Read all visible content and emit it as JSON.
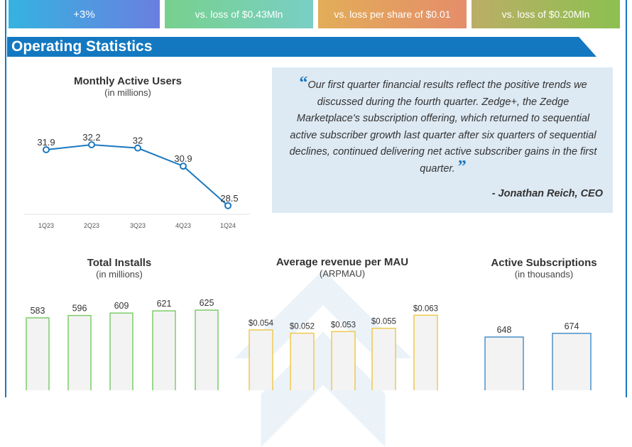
{
  "cards": [
    "+3%",
    "vs. loss of $0.43Mln",
    "vs. loss per share of $0.01",
    "vs. loss of $0.20Mln"
  ],
  "section_title": "Operating Statistics",
  "colors": {
    "accent": "#1378c0",
    "line": "#1b78c0",
    "installs": "#7ccd6a",
    "arpmau": "#efc94c",
    "subs": "#4a90c8",
    "quote_bg": "#dde9f3"
  },
  "quote": {
    "text": "Our first quarter financial results reflect the positive trends we discussed during the fourth quarter. Zedge+, the Zedge Marketplace's subscription offering, which returned to sequential active subscriber growth last quarter after six quarters of sequential declines, continued delivering net active subscriber gains in the first quarter.",
    "author": "- Jonathan Reich, CEO"
  },
  "chart_data": [
    {
      "type": "line",
      "title": "Monthly Active Users",
      "subtitle": "(in millions)",
      "categories": [
        "1Q23",
        "2Q23",
        "3Q23",
        "4Q23",
        "1Q24"
      ],
      "values": [
        31.9,
        32.2,
        32,
        30.9,
        28.5
      ],
      "value_labels": [
        "31.9",
        "32.2",
        "32",
        "30.9",
        "28.5"
      ],
      "grid": false
    },
    {
      "type": "bar",
      "title": "Total Installs",
      "subtitle": "(in millions)",
      "values": [
        583,
        596,
        609,
        621,
        625
      ],
      "value_labels": [
        "583",
        "596",
        "609",
        "621",
        "625"
      ]
    },
    {
      "type": "bar",
      "title": "Average revenue per MAU",
      "subtitle": "(ARPMAU)",
      "values": [
        0.054,
        0.052,
        0.053,
        0.055,
        0.063
      ],
      "value_labels": [
        "$0.054",
        "$0.052",
        "$0.053",
        "$0.055",
        "$0.063"
      ]
    },
    {
      "type": "bar",
      "title": "Active Subscriptions",
      "subtitle": "(in thousands)",
      "values": [
        648,
        674
      ],
      "value_labels": [
        "648",
        "674"
      ]
    }
  ]
}
